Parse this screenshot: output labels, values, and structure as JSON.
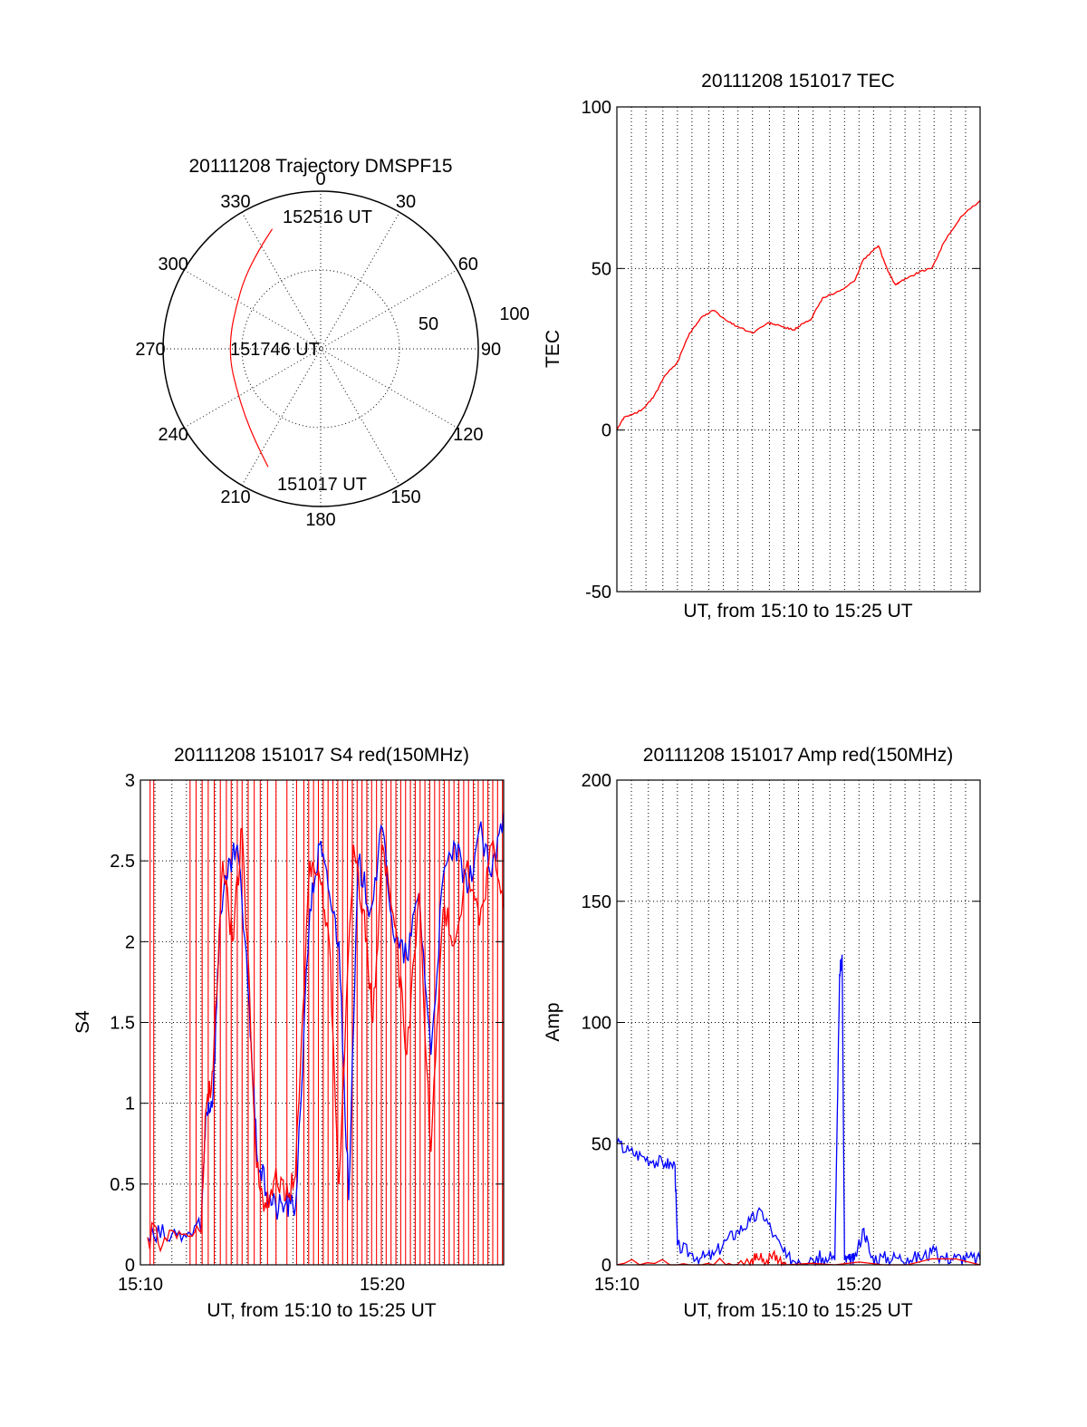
{
  "chart_data": [
    {
      "id": "polar",
      "type": "polar",
      "title": "20111208 Trajectory DMSPF15",
      "angle_labels": [
        {
          "deg": 0,
          "text": "0"
        },
        {
          "deg": 30,
          "text": "30"
        },
        {
          "deg": 60,
          "text": "60"
        },
        {
          "deg": 90,
          "text": "90"
        },
        {
          "deg": 120,
          "text": "120"
        },
        {
          "deg": 150,
          "text": "150"
        },
        {
          "deg": 180,
          "text": "180"
        },
        {
          "deg": 210,
          "text": "210"
        },
        {
          "deg": 240,
          "text": "240"
        },
        {
          "deg": 270,
          "text": "270"
        },
        {
          "deg": 300,
          "text": "300"
        },
        {
          "deg": 330,
          "text": "330"
        }
      ],
      "radial_labels": [
        "50",
        "100"
      ],
      "trajectory": [
        [
          204,
          82
        ],
        [
          215,
          72
        ],
        [
          229,
          64
        ],
        [
          245,
          59
        ],
        [
          262,
          58
        ],
        [
          280,
          58
        ],
        [
          297,
          60
        ],
        [
          313,
          66
        ],
        [
          328,
          74
        ],
        [
          338,
          82
        ]
      ],
      "track_labels": {
        "start": "151017 UT",
        "mid": "151746 UT",
        "end": "152516 UT"
      },
      "track_color": "#ff0000"
    },
    {
      "id": "tec",
      "type": "line",
      "title": "20111208 151017 TEC",
      "xlabel": "UT, from 15:10 to 15:25 UT",
      "ylabel": "TEC",
      "xlim": [
        0,
        15
      ],
      "ylim": [
        -50,
        100
      ],
      "yticks": [
        -50,
        0,
        50,
        100
      ],
      "xgrid": [
        0.6,
        1.2,
        1.9,
        2.5,
        3.1,
        3.8,
        4.4,
        5.0,
        5.6,
        6.3,
        6.9,
        7.5,
        8.1,
        8.8,
        9.4,
        10.0,
        10.6,
        11.3,
        11.9,
        12.5,
        13.1,
        13.8,
        14.4
      ],
      "series": [
        {
          "name": "TEC",
          "color": "#ff0000",
          "x": [
            0,
            0.3,
            1.0,
            1.5,
            2.0,
            2.5,
            3.0,
            3.5,
            4.0,
            4.5,
            5.0,
            5.6,
            6.2,
            6.4,
            6.8,
            7.3,
            7.7,
            8.0,
            8.5,
            9.2,
            9.8,
            10.2,
            10.8,
            11.2,
            11.5,
            11.7,
            12.0,
            12.5,
            13.0,
            13.5,
            14.2,
            15.0
          ],
          "y": [
            0,
            4,
            6,
            10,
            17,
            21,
            30,
            35,
            37,
            34,
            32,
            30,
            33,
            33,
            32,
            31,
            33,
            34,
            41,
            43,
            46,
            53,
            57,
            49,
            45,
            46,
            47,
            49,
            50,
            58,
            66,
            71
          ]
        }
      ]
    },
    {
      "id": "s4",
      "type": "line",
      "title": "20111208 151017 S4 red(150MHz)",
      "xlabel": "UT, from 15:10 to 15:25 UT",
      "ylabel": "S4",
      "xlim": [
        0,
        15
      ],
      "ylim": [
        0,
        3
      ],
      "yticks": [
        "0",
        "0.5",
        "1",
        "1.5",
        "2",
        "2.5",
        "3"
      ],
      "xticks": [
        "15:10",
        "15:20"
      ],
      "xgrid": [
        0.6,
        1.3,
        1.9,
        2.5,
        3.1,
        3.8,
        4.4,
        5.0,
        5.6,
        6.3,
        6.9,
        7.5,
        8.1,
        8.8,
        9.4,
        10.0,
        10.6,
        11.3,
        11.9,
        12.5,
        13.1,
        13.8,
        14.4
      ],
      "series": [
        {
          "name": "blue",
          "color": "#0000ff",
          "x": [
            0.3,
            1.0,
            1.8,
            2.5,
            2.7,
            3.0,
            3.3,
            3.6,
            4.0,
            4.5,
            4.8,
            5.2,
            5.6,
            6.0,
            6.4,
            7.0,
            7.4,
            7.8,
            8.2,
            8.6,
            9.0,
            9.5,
            10.0,
            10.5,
            11.0,
            11.5,
            12.0,
            12.5,
            13.0,
            13.5,
            14.0,
            14.5,
            15.0
          ],
          "y": [
            0.17,
            0.17,
            0.19,
            0.2,
            0.95,
            1.05,
            2.2,
            2.4,
            2.6,
            1.6,
            0.7,
            0.45,
            0.35,
            0.38,
            0.35,
            2.2,
            2.6,
            2.3,
            2.0,
            0.4,
            2.5,
            2.2,
            2.7,
            2.0,
            1.9,
            2.3,
            1.3,
            2.4,
            2.6,
            2.3,
            2.7,
            2.4,
            2.8
          ]
        },
        {
          "name": "red",
          "color": "#ff0000",
          "x": [
            0.3,
            1.0,
            1.8,
            2.5,
            2.7,
            3.0,
            3.4,
            3.8,
            4.2,
            4.8,
            5.2,
            5.6,
            6.0,
            6.4,
            7.0,
            7.4,
            7.8,
            8.2,
            8.8,
            9.2,
            9.6,
            10.0,
            10.5,
            11.0,
            11.5,
            12.0,
            12.5,
            13.0,
            13.5,
            14.0,
            14.5,
            15.0
          ],
          "y": [
            0.17,
            0.17,
            0.19,
            0.2,
            0.95,
            1.2,
            2.5,
            2.0,
            2.7,
            0.6,
            0.35,
            0.6,
            0.4,
            0.55,
            2.5,
            2.4,
            2.0,
            0.5,
            2.6,
            2.2,
            1.5,
            2.6,
            2.1,
            1.3,
            2.3,
            0.7,
            2.2,
            2.0,
            2.5,
            2.1,
            2.6,
            2.2
          ]
        }
      ],
      "red_spikes": [
        0.4,
        0.55,
        2.05,
        2.3,
        2.55,
        2.8,
        3.05,
        3.3,
        3.55,
        3.75,
        4.0,
        4.2,
        4.45,
        4.7,
        4.95,
        5.25,
        5.6,
        6.05,
        6.45,
        6.75,
        6.95,
        7.15,
        7.35,
        7.55,
        7.75,
        7.95,
        8.15,
        8.35,
        8.55,
        8.75,
        8.95,
        9.15,
        9.35,
        9.55,
        9.75,
        9.95,
        10.15,
        10.35,
        10.55,
        10.75,
        10.95,
        11.15,
        11.35,
        11.55,
        11.75,
        11.95,
        12.15,
        12.35,
        12.55,
        12.75,
        12.95,
        13.15,
        13.35,
        13.55,
        13.75,
        13.95,
        14.15,
        14.35,
        14.55,
        14.75,
        14.95
      ]
    },
    {
      "id": "amp",
      "type": "line",
      "title": "20111208 151017 Amp red(150MHz)",
      "xlabel": "UT, from 15:10 to 15:25 UT",
      "ylabel": "Amp",
      "xlim": [
        0,
        15
      ],
      "ylim": [
        0,
        200
      ],
      "yticks": [
        0,
        50,
        100,
        150,
        200
      ],
      "xticks": [
        "15:10",
        "15:20"
      ],
      "xgrid": [
        0.6,
        1.3,
        1.9,
        2.5,
        3.1,
        3.8,
        4.4,
        5.0,
        5.6,
        6.3,
        6.9,
        7.5,
        8.1,
        8.8,
        9.4,
        10.0,
        10.6,
        11.3,
        11.9,
        12.5,
        13.1,
        13.8,
        14.4
      ],
      "series": [
        {
          "name": "blue",
          "color": "#0000ff",
          "x": [
            0,
            0.5,
            1.0,
            1.5,
            2.0,
            2.4,
            2.5,
            3.0,
            3.5,
            4.0,
            4.5,
            5.0,
            5.5,
            6.0,
            6.5,
            7.0,
            7.5,
            8.0,
            8.5,
            9.0,
            9.2,
            9.3,
            9.4,
            9.6,
            9.8,
            10.2,
            10.5,
            11.0,
            11.5,
            12.0,
            12.5,
            13.0,
            13.5,
            14.0,
            14.5,
            15.0
          ],
          "y": [
            50,
            47,
            45,
            43,
            42,
            41,
            8,
            5,
            3,
            4,
            10,
            14,
            18,
            22,
            12,
            3,
            2,
            3,
            3,
            2,
            120,
            128,
            2,
            2,
            2,
            15,
            3,
            3,
            3,
            3,
            3,
            5,
            3,
            3,
            3,
            2
          ]
        },
        {
          "name": "red",
          "color": "#ff0000",
          "x": [
            0,
            2.5,
            4.5,
            5.5,
            5.8,
            6.2,
            6.6,
            7.0,
            15.0
          ],
          "y": [
            0,
            0,
            0,
            0,
            3,
            2,
            4,
            0,
            0
          ]
        }
      ]
    }
  ]
}
